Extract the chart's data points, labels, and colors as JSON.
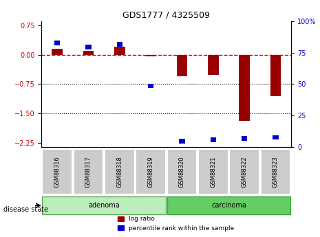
{
  "title": "GDS1777 / 4325509",
  "samples": [
    "GSM88316",
    "GSM88317",
    "GSM88318",
    "GSM88319",
    "GSM88320",
    "GSM88321",
    "GSM88322",
    "GSM88323"
  ],
  "log_ratios": [
    0.15,
    0.1,
    0.2,
    -0.05,
    -0.55,
    -0.52,
    -1.68,
    -1.05
  ],
  "percentile_ranks": [
    82,
    79,
    81,
    48,
    4,
    5,
    6,
    7
  ],
  "groups": [
    "adenoma",
    "adenoma",
    "adenoma",
    "adenoma",
    "carcinoma",
    "carcinoma",
    "carcinoma",
    "carcinoma"
  ],
  "group_colors": {
    "adenoma": "#aaddaa",
    "carcinoma": "#55cc55"
  },
  "bar_color": "#990000",
  "percentile_color": "#0000cc",
  "ylim_left": [
    -2.35,
    0.85
  ],
  "ylim_right": [
    0,
    100
  ],
  "yticks_left": [
    0.75,
    0,
    -0.75,
    -1.5,
    -2.25
  ],
  "yticks_right": [
    100,
    75,
    50,
    25,
    0
  ],
  "hline_y": 0,
  "dotted_lines": [
    -0.75,
    -1.5
  ],
  "legend_labels": [
    "log ratio",
    "percentile rank within the sample"
  ],
  "adenoma_label": "adenoma",
  "carcinoma_label": "carcinoma",
  "disease_state_label": "disease state"
}
